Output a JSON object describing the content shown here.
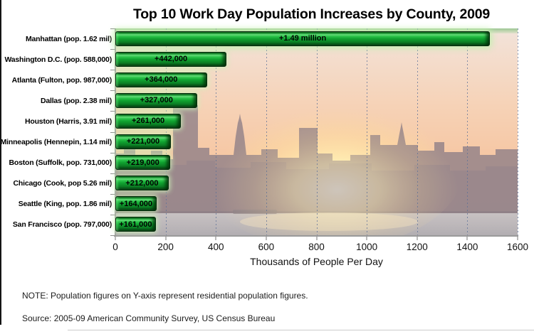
{
  "chart_data": {
    "type": "bar",
    "orientation": "horizontal",
    "title": "Top 10 Work Day Population Increases by County, 2009",
    "xlabel": "Thousands of People Per Day",
    "xlim": [
      0,
      1600
    ],
    "xticks": [
      0,
      200,
      400,
      600,
      800,
      1000,
      1200,
      1400,
      1600
    ],
    "grid": "vertical dashed gridlines at each x tick",
    "legend": "none",
    "categories": [
      "Manhattan (pop. 1.62 mil)",
      "Washington D.C. (pop. 588,000)",
      "Atlanta (Fulton, pop. 987,000)",
      "Dallas (pop. 2.38 mil)",
      "Houston (Harris, 3.91 mil)",
      "Minneapolis (Hennepin, 1.14 mil)",
      "Boston (Suffolk, pop. 731,000)",
      "Chicago (Cook, pop 5.26 mil)",
      "Seattle (King, pop. 1.86 mil)",
      "San Francisco (pop. 797,000)"
    ],
    "values": [
      1490,
      442,
      364,
      327,
      261,
      221,
      219,
      212,
      164,
      161
    ],
    "bar_labels": [
      "+1.49 million",
      "+442,000",
      "+364,000",
      "+327,000",
      "+261,000",
      "+221,000",
      "+219,000",
      "+212,000",
      "+164,000",
      "+161,000"
    ],
    "background_image": "hazy New York City skyline photo at sunset with sun glow and water"
  },
  "notes": {
    "note": "NOTE: Population figures on Y-axis represent residential population figures.",
    "source": "Source: 2005-09 American Community Survey, US Census Bureau"
  },
  "colors": {
    "bar_green": "#10a330",
    "bar_edge_dark_green": "#042b0c",
    "gridline_blue_gray": "#5c7098",
    "axis_gray": "#9a9a9a",
    "title_text": "#000000",
    "sky_peach": "#f6cfae",
    "sun_glow": "#fffbe2",
    "skyline_silhouette": "#8d7e87",
    "water_gray": "#b5b1b5"
  }
}
